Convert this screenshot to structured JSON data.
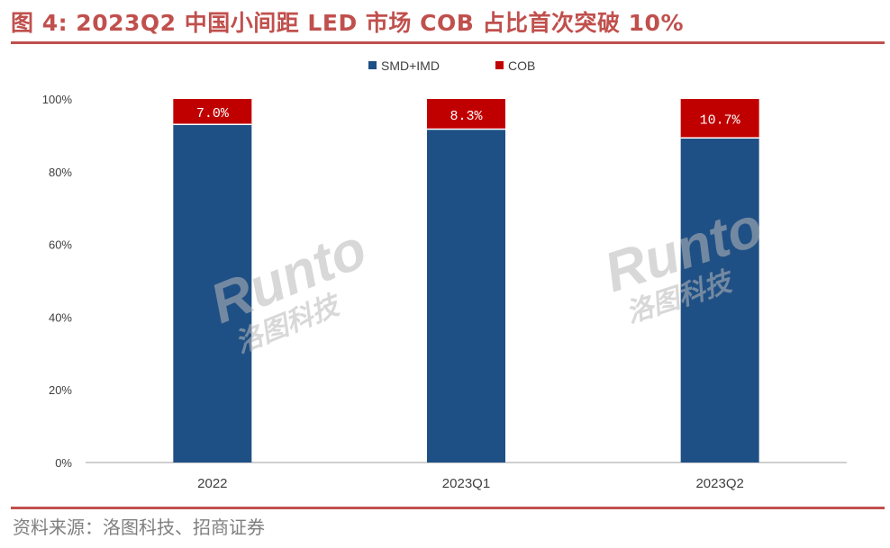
{
  "figure_title": "图 4:  2023Q2 中国小间距 LED 市场 COB 占比首次突破 10%",
  "source": "资料来源：洛图科技、招商证券",
  "watermark": {
    "brand": "Runto",
    "cn": "洛图科技"
  },
  "colors": {
    "smd": "#1f5085",
    "cob": "#c00000",
    "title": "#c0504d",
    "rule": "#c0504d"
  },
  "chart_data": {
    "type": "bar",
    "stacked": true,
    "categories": [
      "2022",
      "2023Q1",
      "2023Q2"
    ],
    "series": [
      {
        "name": "SMD+IMD",
        "values": [
          93.0,
          91.7,
          89.3
        ]
      },
      {
        "name": "COB",
        "values": [
          7.0,
          8.3,
          10.7
        ]
      }
    ],
    "data_labels": [
      "7.0%",
      "8.3%",
      "10.7%"
    ],
    "yticks": [
      "0%",
      "20%",
      "40%",
      "60%",
      "80%",
      "100%"
    ],
    "ylim": [
      0,
      100
    ],
    "xlabel": "",
    "ylabel": "",
    "grid": false,
    "legend_position": "top-center"
  }
}
